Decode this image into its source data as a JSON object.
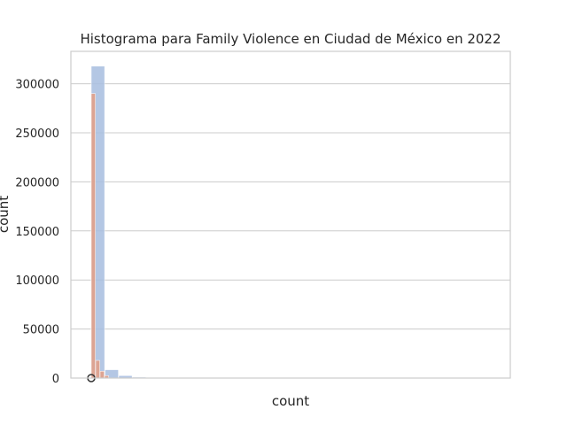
{
  "chart_data": {
    "type": "bar",
    "title": "Histograma para Family Violence en Ciudad de México en 2022",
    "xlabel": "count",
    "ylabel": "count",
    "ylim": [
      0,
      333000
    ],
    "yticks": [
      0,
      50000,
      100000,
      150000,
      200000,
      250000,
      300000
    ],
    "ytick_labels": [
      "0",
      "50000",
      "100000",
      "150000",
      "200000",
      "250000",
      "300000"
    ],
    "grid": true,
    "series": [
      {
        "color": "#a7bddf",
        "opacity": 0.85,
        "values": [
          318000,
          8500,
          2500,
          900,
          400,
          200,
          150,
          100,
          80,
          60,
          50,
          40,
          30,
          30,
          25,
          20,
          20,
          15,
          15,
          12,
          10,
          10,
          8,
          8,
          6,
          6,
          5,
          5,
          4,
          4,
          3,
          3,
          2,
          2,
          2,
          1,
          1,
          1,
          1,
          1,
          1,
          1,
          1,
          1,
          1,
          1,
          1,
          1,
          1,
          1
        ]
      },
      {
        "color": "#e0a08a",
        "opacity": 0.9,
        "values": [
          290000,
          18000,
          7000,
          2500
        ]
      }
    ],
    "markers": [
      {
        "type": "circle",
        "stroke": "#333333",
        "values": [
          0
        ]
      }
    ]
  }
}
